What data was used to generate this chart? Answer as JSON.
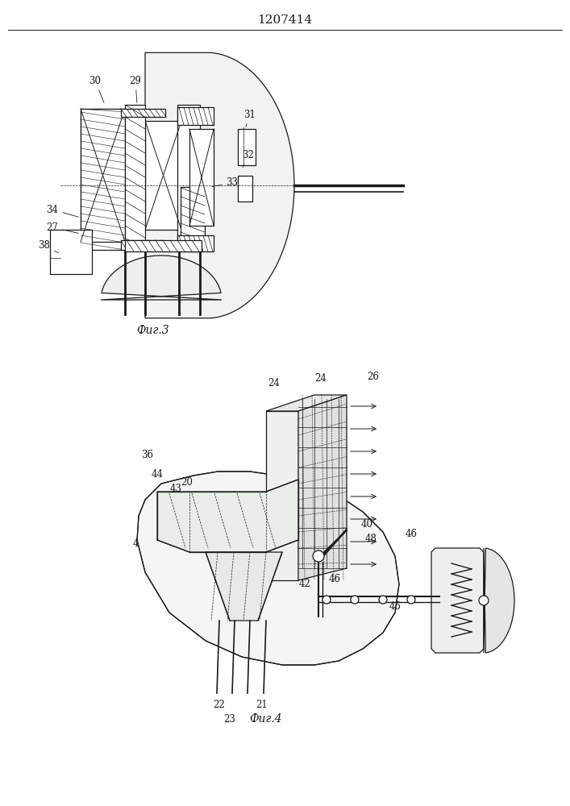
{
  "title": "1207414",
  "fig3_label": "Фиг.3",
  "fig4_label": "Фиг.4",
  "bg_color": "#ffffff",
  "lc": "#1a1a1a",
  "title_fontsize": 11,
  "annot_fontsize": 8.5
}
